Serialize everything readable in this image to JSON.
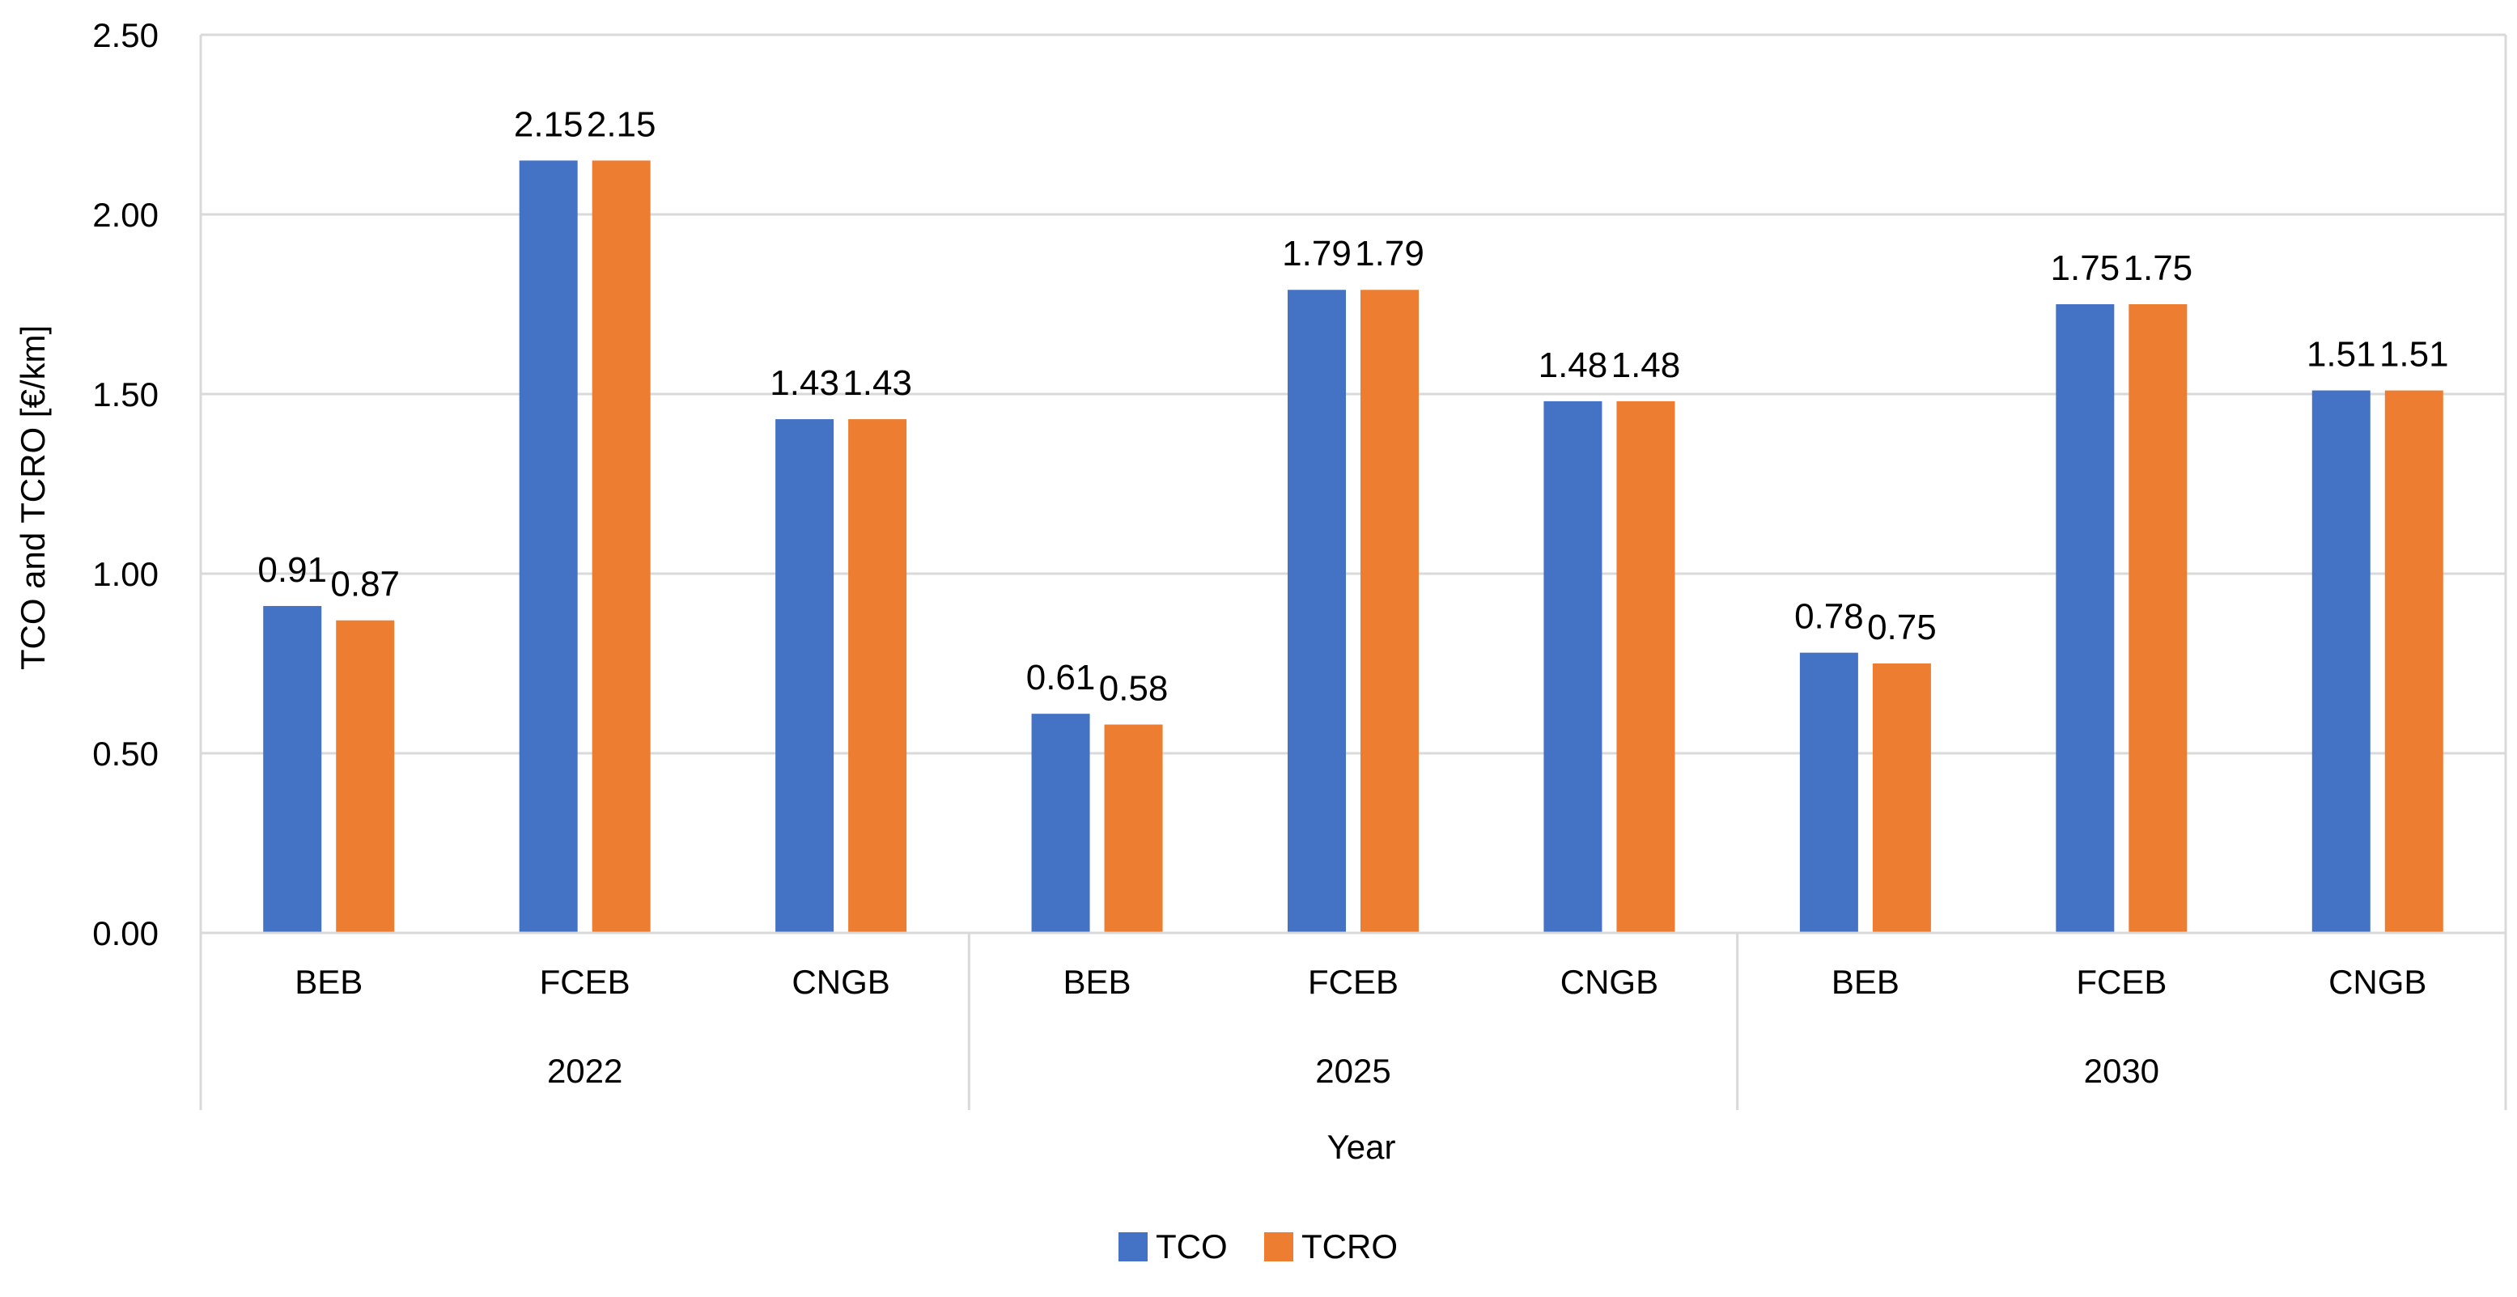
{
  "chart_data": {
    "type": "bar",
    "title": "",
    "xlabel": "Year",
    "ylabel": "TCO and TCRO [€/km]",
    "ylim": [
      0,
      2.5
    ],
    "yticks": [
      "0.00",
      "0.50",
      "1.00",
      "1.50",
      "2.00",
      "2.50"
    ],
    "ytick_values": [
      0,
      0.5,
      1.0,
      1.5,
      2.0,
      2.5
    ],
    "groups": [
      "2022",
      "2025",
      "2030"
    ],
    "categories": [
      "BEB",
      "FCEB",
      "CNGB",
      "BEB",
      "FCEB",
      "CNGB",
      "BEB",
      "FCEB",
      "CNGB"
    ],
    "category_group_index": [
      0,
      0,
      0,
      1,
      1,
      1,
      2,
      2,
      2
    ],
    "series": [
      {
        "name": "TCO",
        "color": "#4472C4",
        "values": [
          0.91,
          2.15,
          1.43,
          0.61,
          1.79,
          1.48,
          0.78,
          1.75,
          1.51
        ],
        "labels": [
          "0.91",
          "2.15",
          "1.43",
          "0.61",
          "1.79",
          "1.48",
          "0.78",
          "1.75",
          "1.51"
        ]
      },
      {
        "name": "TCRO",
        "color": "#ED7D31",
        "values": [
          0.87,
          2.15,
          1.43,
          0.58,
          1.79,
          1.48,
          0.75,
          1.75,
          1.51
        ],
        "labels": [
          "0.87",
          "2.15",
          "1.43",
          "0.58",
          "1.79",
          "1.48",
          "0.75",
          "1.75",
          "1.51"
        ]
      }
    ],
    "legend_position": "bottom",
    "grid": true
  }
}
